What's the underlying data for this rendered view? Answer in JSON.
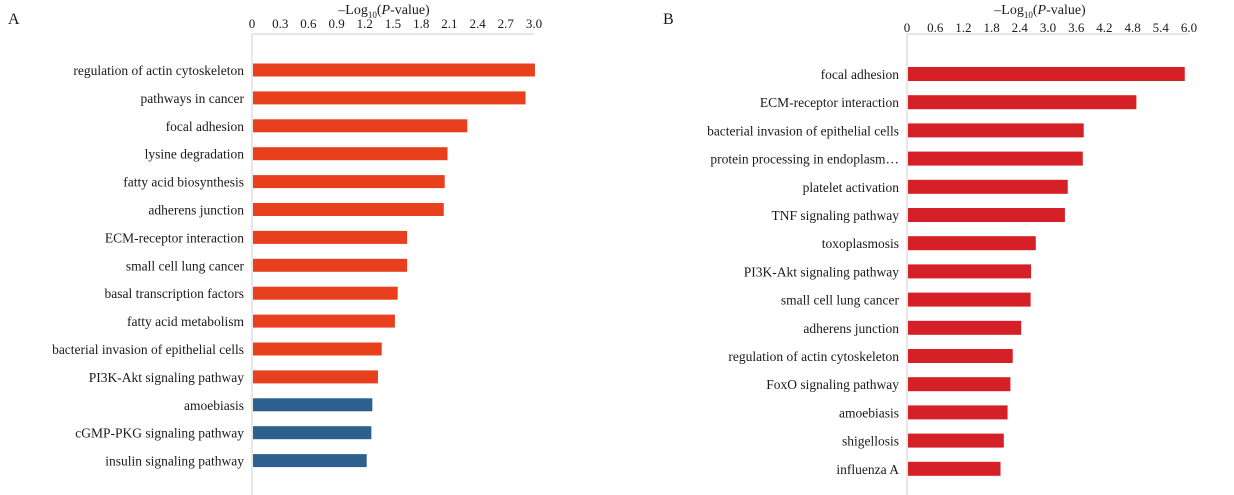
{
  "panels": [
    {
      "letter": "A",
      "axis_title": {
        "prefix": "–Log",
        "subscript": "10",
        "open": "(",
        "italic": "P",
        "suffix": "-value)"
      },
      "colors": {
        "up": "#e8401c",
        "down": "#2d5f8f"
      }
    },
    {
      "letter": "B",
      "axis_title": {
        "prefix": "–Log",
        "subscript": "10",
        "open": "(",
        "italic": "P",
        "suffix": "-value)"
      },
      "colors": {
        "up": "#d42026"
      }
    }
  ],
  "chart_data": [
    {
      "type": "bar",
      "orientation": "horizontal",
      "xlim": [
        0,
        3.0
      ],
      "ticks": [
        "0",
        "0.3",
        "0.6",
        "0.9",
        "1.2",
        "1.5",
        "1.8",
        "2.1",
        "2.4",
        "2.7",
        "3.0"
      ],
      "tick_values": [
        0,
        0.3,
        0.6,
        0.9,
        1.2,
        1.5,
        1.8,
        2.1,
        2.4,
        2.7,
        3.0
      ],
      "categories": [
        "regulation of actin cytoskeleton",
        "pathways in cancer",
        "focal adhesion",
        "lysine degradation",
        "fatty acid biosynthesis",
        "adherens junction",
        "ECM-receptor interaction",
        "small cell lung cancer",
        "basal transcription factors",
        "fatty acid metabolism",
        "bacterial invasion of epithelial cells",
        "PI3K-Akt signaling pathway",
        "amoebiasis",
        "cGMP-PKG signaling pathway",
        "insulin signaling pathway"
      ],
      "values": [
        3.01,
        2.91,
        2.29,
        2.08,
        2.05,
        2.04,
        1.65,
        1.65,
        1.55,
        1.52,
        1.38,
        1.34,
        1.28,
        1.27,
        1.22
      ],
      "color_groups": [
        "up",
        "up",
        "up",
        "up",
        "up",
        "up",
        "up",
        "up",
        "up",
        "up",
        "up",
        "up",
        "down",
        "down",
        "down"
      ]
    },
    {
      "type": "bar",
      "orientation": "horizontal",
      "xlim": [
        0,
        6.0
      ],
      "ticks": [
        "0",
        "0.6",
        "1.2",
        "1.8",
        "2.4",
        "3.0",
        "3.6",
        "4.2",
        "4.8",
        "5.4",
        "6.0"
      ],
      "tick_values": [
        0,
        0.6,
        1.2,
        1.8,
        2.4,
        3.0,
        3.6,
        4.2,
        4.8,
        5.4,
        6.0
      ],
      "categories": [
        "focal adhesion",
        "ECM-receptor interaction",
        "bacterial invasion of epithelial cells",
        "protein processing in endoplasm…",
        "platelet activation",
        "TNF signaling pathway",
        "toxoplasmosis",
        "PI3K-Akt signaling pathway",
        "small cell lung cancer",
        "adherens junction",
        "regulation of actin cytoskeleton",
        "FoxO signaling pathway",
        "amoebiasis",
        "shigellosis",
        "influenza A"
      ],
      "values": [
        5.91,
        4.88,
        3.76,
        3.74,
        3.42,
        3.36,
        2.74,
        2.64,
        2.63,
        2.43,
        2.25,
        2.2,
        2.14,
        2.06,
        1.99
      ],
      "color_groups": [
        "up",
        "up",
        "up",
        "up",
        "up",
        "up",
        "up",
        "up",
        "up",
        "up",
        "up",
        "up",
        "up",
        "up",
        "up"
      ]
    }
  ]
}
